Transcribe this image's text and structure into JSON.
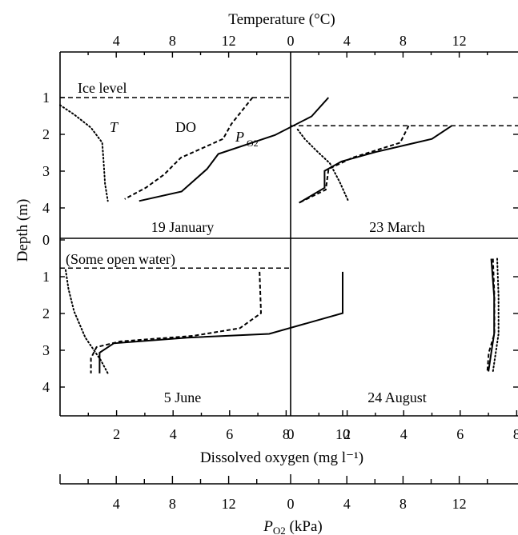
{
  "labels": {
    "temperature_axis": "Temperature (°C)",
    "depth_axis": "Depth (m)",
    "dissolved_oxygen_axis": "Dissolved oxygen (mg l⁻¹)",
    "po2_axis_P": "P",
    "po2_axis_sub": "O2",
    "po2_axis_unit": " (kPa)"
  },
  "chart_data": [
    {
      "type": "line",
      "panel": "top-left",
      "title": "19 January",
      "annotations": [
        "Ice level",
        "T",
        "DO",
        "P",
        "O2"
      ],
      "ice_depth": 1.0,
      "ylim": [
        0,
        4.5
      ],
      "do_xlim": [
        0,
        11.7
      ],
      "temp_xlim": [
        0,
        14.9
      ],
      "series": [
        {
          "name": "DO",
          "unit": "mg l-1",
          "style": "solid",
          "points": [
            [
              9.5,
              1.0
            ],
            [
              8.9,
              1.5
            ],
            [
              7.6,
              2.0
            ],
            [
              5.6,
              2.5
            ],
            [
              5.2,
              2.9
            ],
            [
              4.3,
              3.5
            ],
            [
              2.8,
              3.75
            ]
          ]
        },
        {
          "name": "PO2",
          "unit": "kPa",
          "style": "dashed",
          "points": [
            [
              13.7,
              1.0
            ],
            [
              12.2,
              1.7
            ],
            [
              11.6,
              2.1
            ],
            [
              8.6,
              2.6
            ],
            [
              7.4,
              3.05
            ],
            [
              6.1,
              3.4
            ],
            [
              4.6,
              3.7
            ]
          ]
        },
        {
          "name": "T",
          "unit": "°C",
          "style": "dotted",
          "points": [
            [
              0,
              1.2
            ],
            [
              1.0,
              1.45
            ],
            [
              2.2,
              1.8
            ],
            [
              3.0,
              2.2
            ],
            [
              3.1,
              2.7
            ],
            [
              3.2,
              3.3
            ],
            [
              3.4,
              3.75
            ]
          ]
        }
      ]
    },
    {
      "type": "line",
      "panel": "top-right",
      "title": "23 March",
      "ice_depth": 1.75,
      "ylim": [
        0,
        4.5
      ],
      "do_xlim": [
        0,
        11.7
      ],
      "temp_xlim": [
        0,
        14.9
      ],
      "series": [
        {
          "name": "DO",
          "unit": "mg l-1",
          "style": "solid",
          "points": [
            [
              5.7,
              1.75
            ],
            [
              5.0,
              2.1
            ],
            [
              3.0,
              2.45
            ],
            [
              1.8,
              2.7
            ],
            [
              1.2,
              2.95
            ],
            [
              1.2,
              3.4
            ],
            [
              0.3,
              3.8
            ]
          ]
        },
        {
          "name": "PO2",
          "unit": "kPa",
          "style": "dashed",
          "points": [
            [
              8.4,
              1.75
            ],
            [
              7.8,
              2.2
            ],
            [
              4.4,
              2.6
            ],
            [
              2.7,
              2.9
            ],
            [
              2.5,
              3.45
            ],
            [
              0.6,
              3.8
            ]
          ]
        },
        {
          "name": "T",
          "unit": "°C",
          "style": "dotted",
          "points": [
            [
              0.5,
              1.85
            ],
            [
              1.0,
              2.1
            ],
            [
              1.8,
              2.4
            ],
            [
              2.8,
              2.75
            ],
            [
              3.5,
              3.25
            ],
            [
              4.1,
              3.75
            ]
          ]
        }
      ]
    },
    {
      "type": "line",
      "panel": "bottom-left",
      "title": "5 June",
      "annotations": [
        "(Some open water)"
      ],
      "ice_depth": 0.75,
      "ylim": [
        0,
        4.5
      ],
      "do_xlim": [
        0,
        11.7
      ],
      "temp_xlim": [
        0,
        14.9
      ],
      "series": [
        {
          "name": "DO",
          "unit": "mg l-1",
          "style": "solid",
          "points": [
            [
              10.0,
              0.85
            ],
            [
              10.0,
              1.95
            ],
            [
              7.4,
              2.5
            ],
            [
              4.5,
              2.6
            ],
            [
              1.9,
              2.75
            ],
            [
              1.4,
              3.0
            ],
            [
              1.4,
              3.55
            ]
          ]
        },
        {
          "name": "PO2",
          "unit": "kPa",
          "style": "dashed",
          "points": [
            [
              14.2,
              0.85
            ],
            [
              14.3,
              1.95
            ],
            [
              12.8,
              2.35
            ],
            [
              9.5,
              2.55
            ],
            [
              4.3,
              2.7
            ],
            [
              2.6,
              2.85
            ],
            [
              2.2,
              3.15
            ],
            [
              2.2,
              3.55
            ]
          ]
        },
        {
          "name": "T",
          "unit": "°C",
          "style": "dotted",
          "points": [
            [
              0.4,
              0.8
            ],
            [
              0.6,
              1.3
            ],
            [
              1.0,
              1.9
            ],
            [
              1.8,
              2.6
            ],
            [
              2.9,
              3.2
            ],
            [
              3.4,
              3.55
            ]
          ]
        }
      ]
    },
    {
      "type": "line",
      "panel": "bottom-right",
      "title": "24 August",
      "ylim": [
        0,
        4.5
      ],
      "do_xlim": [
        0,
        11.7
      ],
      "temp_xlim": [
        0,
        14.9
      ],
      "series": [
        {
          "name": "DO",
          "unit": "mg l-1",
          "style": "solid",
          "points": [
            [
              7.1,
              0.5
            ],
            [
              7.2,
              1.5
            ],
            [
              7.2,
              2.5
            ],
            [
              7.1,
              3.0
            ],
            [
              7.0,
              3.5
            ]
          ]
        },
        {
          "name": "PO2",
          "unit": "kPa",
          "style": "dashed",
          "points": [
            [
              14.4,
              0.5
            ],
            [
              14.5,
              1.5
            ],
            [
              14.5,
              2.5
            ],
            [
              14.1,
              3.0
            ],
            [
              14.0,
              3.5
            ]
          ]
        },
        {
          "name": "T",
          "unit": "°C",
          "style": "dotted",
          "points": [
            [
              14.7,
              0.5
            ],
            [
              14.8,
              1.5
            ],
            [
              14.8,
              2.5
            ],
            [
              14.6,
              3.0
            ],
            [
              14.4,
              3.5
            ]
          ]
        }
      ]
    }
  ],
  "axes": {
    "depth_ticks_top": [
      "1",
      "2",
      "3",
      "4"
    ],
    "depth_ticks_bottom": [
      "0",
      "1",
      "2",
      "3",
      "4"
    ],
    "temperature_ticks_left": [
      "4",
      "8",
      "12"
    ],
    "temperature_ticks_right": [
      "0",
      "4",
      "8",
      "12"
    ],
    "do_ticks_left": [
      "2",
      "4",
      "6",
      "8",
      "10"
    ],
    "do_ticks_right": [
      "0",
      "2",
      "4",
      "6",
      "8",
      "10"
    ],
    "po2_ticks_left": [
      "4",
      "8",
      "12"
    ],
    "po2_ticks_right": [
      "0",
      "4",
      "8",
      "12"
    ]
  }
}
